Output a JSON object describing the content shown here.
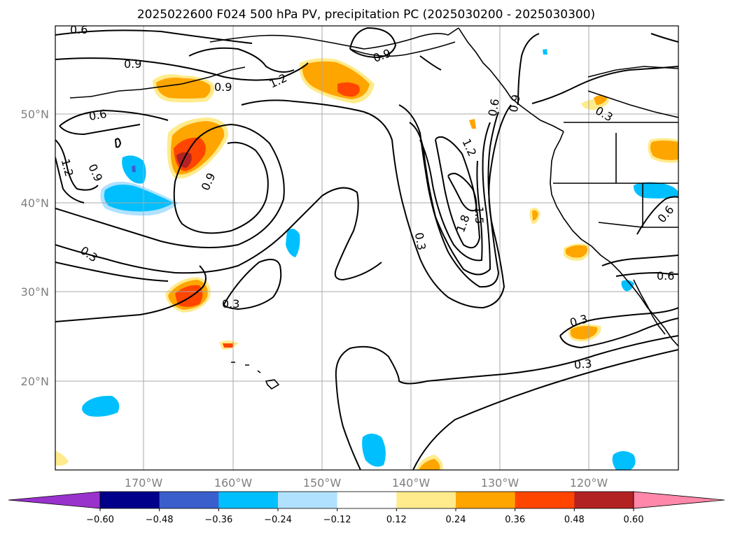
{
  "title": "2025022600 F024 500 hPa PV, precipitation PC (2025030200 - 2025030300)",
  "map": {
    "lat_labels": [
      "50°N",
      "40°N",
      "30°N",
      "20°N"
    ],
    "lon_labels": [
      "170°W",
      "160°W",
      "150°W",
      "140°W",
      "130°W",
      "120°W"
    ],
    "contour_levels": [
      "0.3",
      "0.6",
      "0.9",
      "1.2",
      "1.5",
      "1.8"
    ]
  },
  "colorbar": {
    "ticks": [
      "−0.60",
      "−0.48",
      "−0.36",
      "−0.24",
      "−0.12",
      "0.12",
      "0.24",
      "0.36",
      "0.48",
      "0.60"
    ],
    "colors": [
      "#9932cc",
      "#00008b",
      "#3a5fcd",
      "#00bfff",
      "#b0e2ff",
      "#ffffff",
      "#ffeb8b",
      "#ffa500",
      "#ff4500",
      "#b22222",
      "#ff88aa"
    ]
  },
  "contour_labels": [
    {
      "text": "0.6"
    },
    {
      "text": "0.9"
    },
    {
      "text": "0.9"
    },
    {
      "text": "1.2"
    },
    {
      "text": "0.6"
    },
    {
      "text": "1.2"
    },
    {
      "text": "0.9"
    },
    {
      "text": "0.9"
    },
    {
      "text": "0.3"
    },
    {
      "text": "0.3"
    },
    {
      "text": "0.9"
    },
    {
      "text": "0.6"
    },
    {
      "text": "1.2"
    },
    {
      "text": "1.5"
    },
    {
      "text": "1.8"
    },
    {
      "text": "0.3"
    },
    {
      "text": "0.3"
    },
    {
      "text": "0.6"
    },
    {
      "text": "0.6"
    },
    {
      "text": "0.3"
    },
    {
      "text": "0.3"
    },
    {
      "text": "0.9"
    }
  ]
}
